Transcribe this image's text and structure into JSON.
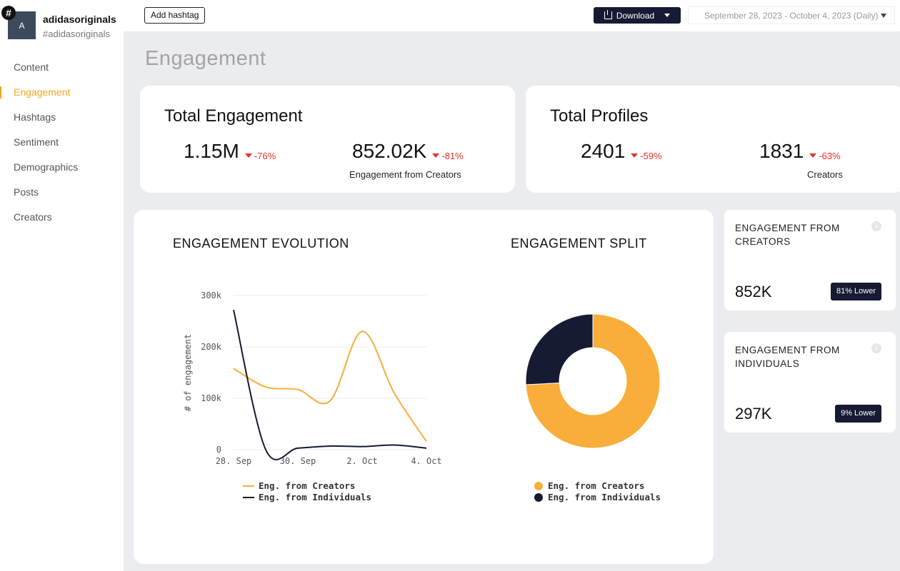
{
  "account": {
    "hash_badge": "#",
    "avatar_initial": "A",
    "name": "adidasoriginals",
    "handle": "#adidasoriginals"
  },
  "nav": {
    "items": [
      {
        "label": "Content"
      },
      {
        "label": "Engagement"
      },
      {
        "label": "Hashtags"
      },
      {
        "label": "Sentiment"
      },
      {
        "label": "Demographics"
      },
      {
        "label": "Posts"
      },
      {
        "label": "Creators"
      }
    ],
    "active_index": 1
  },
  "topbar": {
    "add_hashtag_label": "Add hashtag",
    "download_label": "Download",
    "date_range": "September 28, 2023 - October 4, 2023 (Daily)"
  },
  "page": {
    "title": "Engagement"
  },
  "total_engagement": {
    "title": "Total Engagement",
    "value": "1.15M",
    "delta": "-76%",
    "creators_value": "852.02K",
    "creators_delta": "-81%",
    "creators_label": "Engagement from Creators"
  },
  "total_profiles": {
    "title": "Total Profiles",
    "value": "2401",
    "delta": "-59%",
    "creators_value": "1831",
    "creators_delta": "-63%",
    "creators_label": "Creators"
  },
  "side_cards": {
    "creators": {
      "title": "ENGAGEMENT FROM CREATORS",
      "value": "852K",
      "badge": "81% Lower"
    },
    "individuals": {
      "title": "ENGAGEMENT FROM INDIVIDUALS",
      "value": "297K",
      "badge": "9% Lower"
    }
  },
  "colors": {
    "accent": "#f5a623",
    "creators": "#f9ad3a",
    "individuals": "#161a33",
    "negative": "#e8332a"
  },
  "icons": [
    "hashtag-icon",
    "download-icon",
    "caret-down-icon",
    "info-icon"
  ],
  "chart_data": [
    {
      "type": "line",
      "title": "ENGAGEMENT EVOLUTION",
      "ylabel": "# of engagement",
      "xlabel": "",
      "ylim": [
        0,
        300000
      ],
      "yticks": [
        0,
        100000,
        200000,
        300000
      ],
      "ytick_labels": [
        "0",
        "100k",
        "200k",
        "300k"
      ],
      "xtick_labels": [
        "28. Sep",
        "30. Sep",
        "2. Oct",
        "4. Oct"
      ],
      "x": [
        "28. Sep",
        "29. Sep",
        "30. Sep",
        "1. Oct",
        "2. Oct",
        "3. Oct",
        "4. Oct"
      ],
      "series": [
        {
          "name": "Eng. from Creators",
          "values": [
            158000,
            122000,
            117000,
            95000,
            230000,
            110000,
            16000
          ]
        },
        {
          "name": "Eng. from Individuals",
          "values": [
            272000,
            0,
            3000,
            7000,
            6000,
            9000,
            3000
          ]
        }
      ],
      "legend_position": "bottom",
      "grid": true
    },
    {
      "type": "pie",
      "title": "ENGAGEMENT SPLIT",
      "donut": true,
      "labels": [
        "Eng. from Creators",
        "Eng. from Individuals"
      ],
      "values": [
        852,
        297
      ],
      "legend_position": "bottom"
    }
  ]
}
